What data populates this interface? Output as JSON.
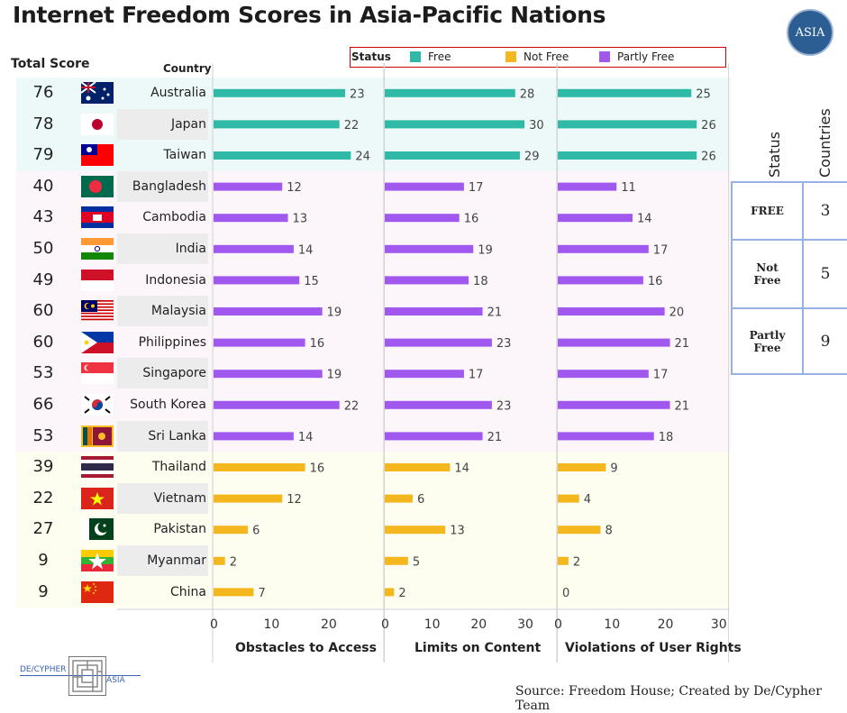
{
  "title": "Internet Freedom Scores in Asia-Pacific Nations",
  "logo_text": "ASIA",
  "legend": {
    "title": "Status",
    "items": [
      {
        "label": "Free",
        "color": "#2ebaa6"
      },
      {
        "label": "Not Free",
        "color": "#f4b71e"
      },
      {
        "label": "Partly Free",
        "color": "#a158ee"
      }
    ]
  },
  "headers": {
    "total_score": "Total Score",
    "country": "Country"
  },
  "band_colors": {
    "Free": "#edf9f8",
    "Partly Free": "#fcf6fa",
    "Not Free": "#fdfdf0"
  },
  "chart_data": {
    "type": "bar",
    "categories": [
      "Australia",
      "Japan",
      "Taiwan",
      "Bangladesh",
      "Cambodia",
      "India",
      "Indonesia",
      "Malaysia",
      "Philippines",
      "Singapore",
      "South Korea",
      "Sri Lanka",
      "Thailand",
      "Vietnam",
      "Pakistan",
      "Myanmar",
      "China"
    ],
    "total_scores": [
      76,
      78,
      79,
      40,
      43,
      50,
      49,
      60,
      60,
      53,
      66,
      53,
      39,
      22,
      27,
      9,
      9
    ],
    "status": [
      "Free",
      "Free",
      "Free",
      "Partly Free",
      "Partly Free",
      "Partly Free",
      "Partly Free",
      "Partly Free",
      "Partly Free",
      "Partly Free",
      "Partly Free",
      "Partly Free",
      "Not Free",
      "Not Free",
      "Not Free",
      "Not Free",
      "Not Free"
    ],
    "series": [
      {
        "name": "Obstacles to Access",
        "values": [
          23,
          22,
          24,
          12,
          13,
          14,
          15,
          19,
          16,
          19,
          22,
          14,
          16,
          12,
          6,
          2,
          7
        ],
        "ticks": [
          0,
          10,
          20
        ]
      },
      {
        "name": "Limits on Content",
        "values": [
          28,
          30,
          29,
          17,
          16,
          19,
          18,
          21,
          23,
          17,
          23,
          21,
          14,
          6,
          13,
          5,
          2
        ],
        "ticks": [
          0,
          10,
          20,
          30
        ]
      },
      {
        "name": "Violations of User Rights",
        "values": [
          25,
          26,
          26,
          11,
          14,
          17,
          16,
          20,
          21,
          17,
          21,
          18,
          9,
          4,
          8,
          2,
          0
        ],
        "ticks": [
          0,
          10,
          20,
          30
        ]
      }
    ],
    "xlim": [
      0,
      30
    ]
  },
  "status_table": {
    "col_headers": [
      "Status",
      "Countries"
    ],
    "rows": [
      {
        "status": "FREE",
        "count": "3"
      },
      {
        "status": "Not Free",
        "count": "5"
      },
      {
        "status": "Partly Free",
        "count": "9"
      }
    ]
  },
  "source": "Source: Freedom House; Created by De/Cypher Team",
  "brand": {
    "left": "DE/CYPHER",
    "right": "ASIA"
  }
}
